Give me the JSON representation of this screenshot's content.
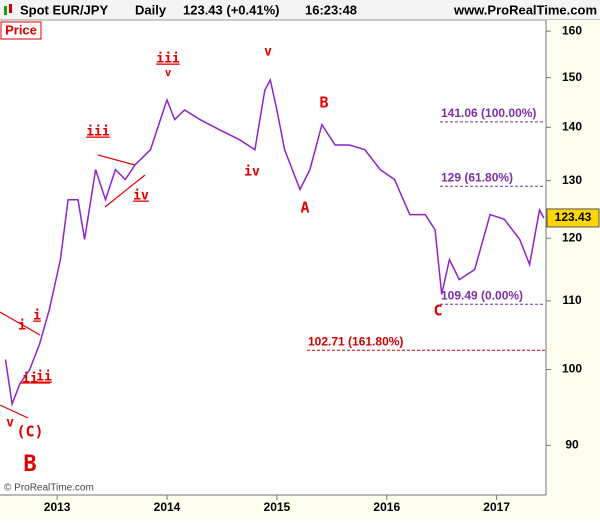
{
  "chart_data": {
    "type": "line",
    "title": "Spot EUR/JPY",
    "timeframe": "Daily",
    "quote": "123.43 (+0.41%)",
    "time": "16:23:48",
    "site": "www.ProRealTime.com",
    "panel_label": "Price",
    "copyright": "© ProRealTime.com",
    "log_scale": true,
    "last_value": 123.43,
    "series": [
      {
        "color": "#8e24c9",
        "x": [
          2012.53,
          2012.59,
          2012.66,
          2012.75,
          2012.84,
          2012.93,
          2013.03,
          2013.1,
          2013.19,
          2013.25,
          2013.35,
          2013.44,
          2013.53,
          2013.62,
          2013.71,
          2013.85,
          2013.94,
          2014.0,
          2014.07,
          2014.16,
          2014.3,
          2014.48,
          2014.66,
          2014.8,
          2014.89,
          2014.94,
          2015.0,
          2015.07,
          2015.21,
          2015.3,
          2015.41,
          2015.53,
          2015.66,
          2015.8,
          2015.94,
          2016.07,
          2016.21,
          2016.35,
          2016.44,
          2016.5,
          2016.57,
          2016.66,
          2016.8,
          2016.94,
          2017.07,
          2017.21,
          2017.3,
          2017.39,
          2017.43
        ],
        "values": [
          101.4,
          95.3,
          98,
          100,
          103.6,
          108.7,
          116.5,
          126.6,
          126.6,
          119.8,
          132,
          126.6,
          132,
          130.2,
          132.9,
          135.7,
          141.5,
          145.4,
          141.5,
          143.4,
          141.5,
          139.5,
          137.6,
          135.7,
          147.4,
          149.5,
          143.4,
          135.7,
          128.4,
          132,
          140.5,
          136.6,
          136.6,
          135.7,
          132,
          130.2,
          124,
          124,
          121.4,
          111,
          116.5,
          113.3,
          114.9,
          124,
          123.2,
          119.8,
          115.7,
          124.8,
          123.43
        ]
      }
    ],
    "xlim": [
      2012.48,
      2017.44
    ],
    "xticks": [
      2013,
      2014,
      2015,
      2016,
      2017
    ],
    "ylim": [
      84,
      162.5
    ],
    "yticks": [
      90,
      100,
      110,
      120,
      130,
      140,
      150,
      160
    ],
    "levels": [
      {
        "value": 141.06,
        "label": "141.06 (100.00%)",
        "color": "#7b2fa8"
      },
      {
        "value": 129,
        "label": "129 (61.80%)",
        "color": "#7b2fa8"
      },
      {
        "value": 109.49,
        "label": "109.49 (0.00%)",
        "color": "#7b2fa8"
      },
      {
        "value": 102.71,
        "label": "102.71 (161.80%)",
        "color": "#d00000"
      }
    ],
    "annotations": [
      "v",
      "iii",
      "v",
      "iii",
      "iv",
      "iv",
      "B",
      "A",
      "C",
      "i",
      "i",
      "ii",
      "ii",
      "v",
      "(C)",
      "B"
    ]
  }
}
